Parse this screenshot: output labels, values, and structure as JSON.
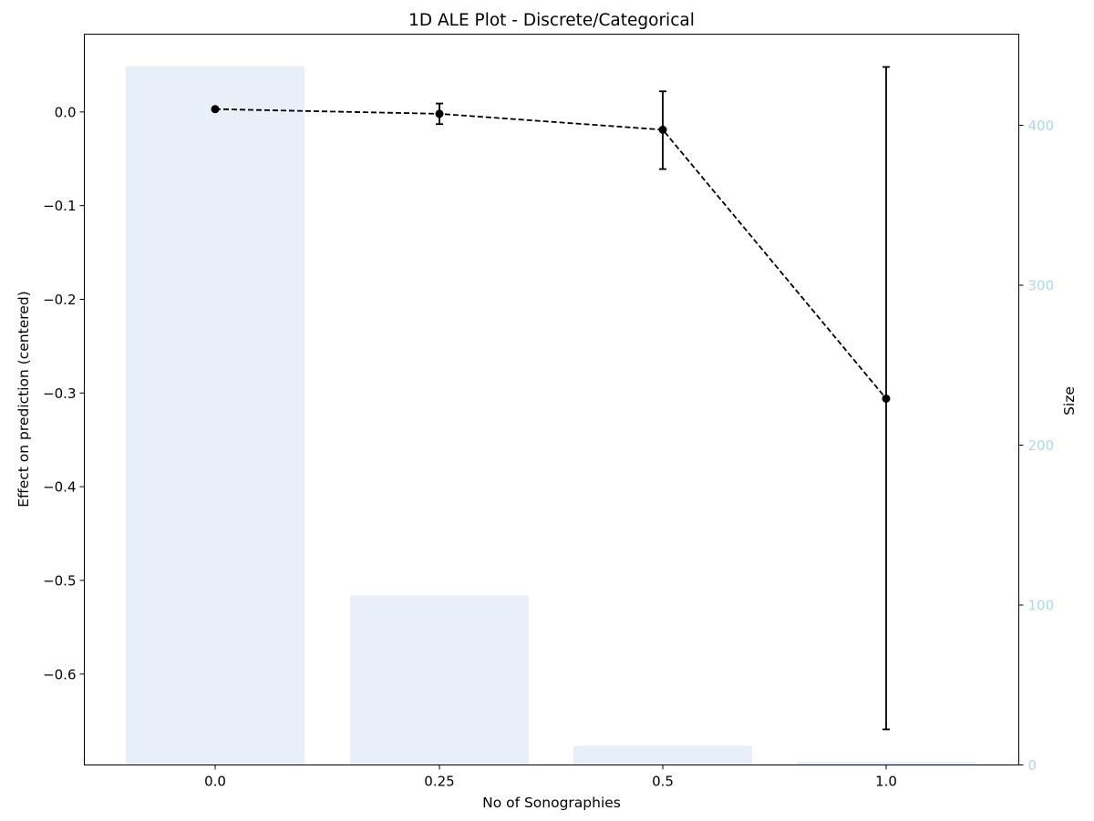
{
  "chart_data": {
    "type": "line",
    "title": "1D ALE Plot - Discrete/Categorical",
    "xlabel": "No of Sonographies",
    "ylabel": "Effect on prediction (centered)",
    "ylabel_right": "Size",
    "categories": [
      "0.0",
      "0.25",
      "0.5",
      "1.0"
    ],
    "effect": {
      "values": [
        0.003,
        -0.002,
        -0.019,
        -0.306
      ],
      "ci_lower": [
        0.003,
        -0.013,
        -0.061,
        -0.659
      ],
      "ci_upper": [
        0.003,
        0.009,
        0.022,
        0.048
      ]
    },
    "size": {
      "values": [
        437,
        106,
        12,
        2
      ]
    },
    "ylim": [
      -0.697,
      0.083
    ],
    "y_ticks": [
      0.0,
      -0.1,
      -0.2,
      -0.3,
      -0.4,
      -0.5,
      -0.6
    ],
    "y_tick_labels": [
      "0.0",
      "−0.1",
      "−0.2",
      "−0.3",
      "−0.4",
      "−0.5",
      "−0.6"
    ],
    "ylim_right": [
      0,
      457
    ],
    "y_ticks_right": [
      0,
      100,
      200,
      300,
      400
    ],
    "y_tick_labels_right": [
      "0",
      "100",
      "200",
      "300",
      "400"
    ],
    "grid": false,
    "colors": {
      "bars": "#e8eff8",
      "line": "#000000",
      "right_axis": "#add8e6"
    }
  }
}
